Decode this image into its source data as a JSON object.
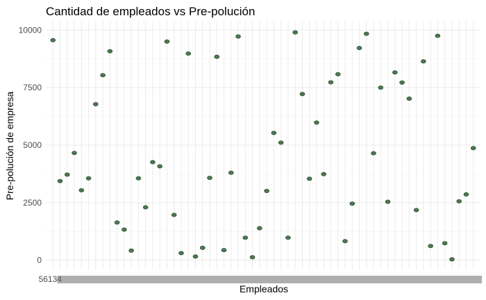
{
  "chart_data": {
    "type": "scatter",
    "title": "Cantidad de empleados vs Pre-polución",
    "xlabel": "Empleados",
    "ylabel": "Pre-polución de empresa",
    "ylim": [
      -400,
      10400
    ],
    "yticks": [
      0,
      2500,
      5000,
      7500,
      10000
    ],
    "ytick_labels": [
      "0",
      "2500",
      "5000",
      "7500",
      "10000"
    ],
    "x_first_tick_label": "56134",
    "grid": true,
    "legend": "none",
    "point_color": "#4a7a52",
    "point_edge_color": "#2e4d33",
    "values": [
      9560,
      3440,
      3720,
      4660,
      3040,
      3560,
      6780,
      8040,
      9080,
      1640,
      1330,
      420,
      3560,
      2300,
      4260,
      4080,
      9500,
      1970,
      310,
      8980,
      160,
      540,
      3580,
      8840,
      440,
      3800,
      9720,
      980,
      130,
      1390,
      3010,
      5530,
      5110,
      980,
      9900,
      7220,
      3540,
      5980,
      3740,
      7730,
      8080,
      830,
      2460,
      9220,
      9840,
      4650,
      7500,
      2540,
      8160,
      7720,
      7020,
      2180,
      8640,
      620,
      9750,
      740,
      40,
      2560,
      2860,
      4870
    ]
  }
}
